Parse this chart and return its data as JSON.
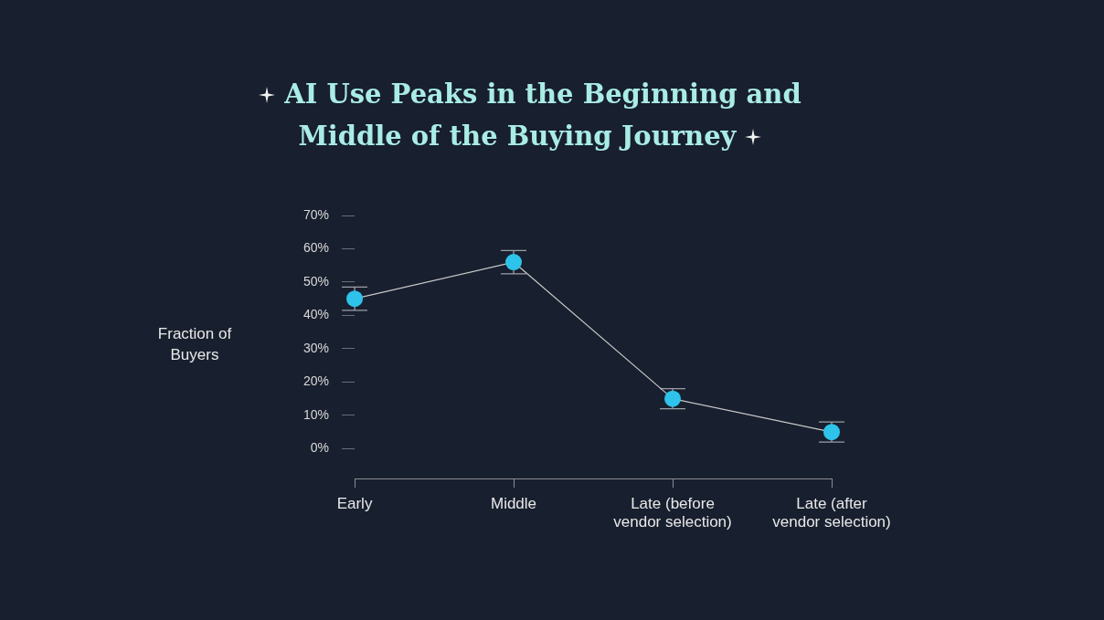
{
  "chart_data": {
    "type": "line",
    "title": "AI Use Peaks in the Beginning and Middle of the Buying Journey",
    "ylabel": "Fraction of Buyers",
    "categories": [
      "Early",
      "Middle",
      "Late (before vendor selection)",
      "Late (after vendor selection)"
    ],
    "series": [
      {
        "color": "#2ec3ea",
        "values": [
          45,
          56,
          15,
          5
        ],
        "errors": [
          3.5,
          3.5,
          3,
          3
        ]
      }
    ],
    "ylim": [
      -9,
      70
    ],
    "yticks": [
      {
        "value": 0,
        "label": "0%"
      },
      {
        "value": 10,
        "label": "10%"
      },
      {
        "value": 20,
        "label": "20%"
      },
      {
        "value": 30,
        "label": "30%"
      },
      {
        "value": 40,
        "label": "40%"
      },
      {
        "value": 50,
        "label": "50%"
      },
      {
        "value": 60,
        "label": "60%"
      },
      {
        "value": 70,
        "label": "70%"
      }
    ],
    "grid": false,
    "legend": false,
    "marker": "circle",
    "line_style": "solid"
  }
}
